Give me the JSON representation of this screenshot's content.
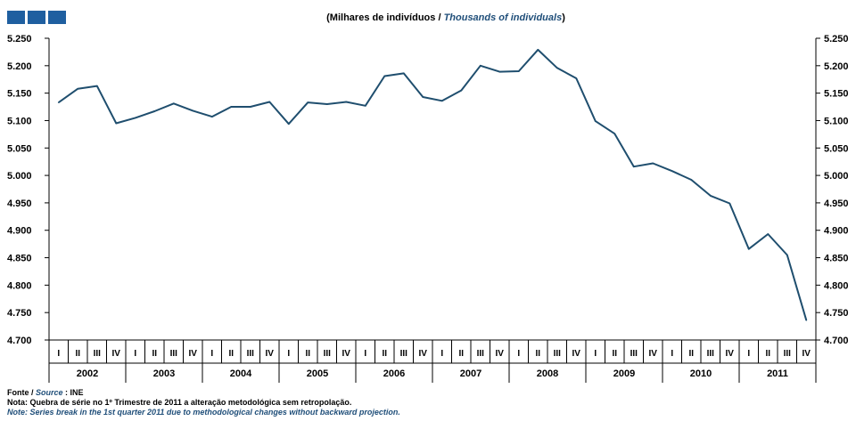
{
  "header": {
    "title_pt": "(Milhares  de indivíduos  /",
    "title_en": "Thousands  of individuals",
    "title_close": ")"
  },
  "notes": {
    "source_pt": "Fonte /",
    "source_en": "Source",
    "source_value": ": INE",
    "note_pt": "Nota: Quebra de série no 1º Trimestre de 2011 a alteração metodológica sem retropolação.",
    "note_en": "Note: Series break in the 1st quarter 2011 due to methodological changes without backward projection."
  },
  "colors": {
    "line": "#1f4e6e",
    "logo": "#1f5fa0",
    "english_text": "#1f4e79"
  },
  "chart_data": {
    "type": "line",
    "title": "(Milhares  de indivíduos  / Thousands  of individuals)",
    "xlabel": "",
    "ylabel": "",
    "ylim": [
      4700,
      5250
    ],
    "yticks": [
      "5.250",
      "5.200",
      "5.150",
      "5.100",
      "5.050",
      "5.000",
      "4.950",
      "4.900",
      "4.850",
      "4.800",
      "4.750",
      "4.700"
    ],
    "quarter_labels": [
      "I",
      "II",
      "III",
      "IV",
      "I",
      "II",
      "III",
      "IV",
      "I",
      "II",
      "III",
      "IV",
      "I",
      "II",
      "III",
      "IV",
      "I",
      "II",
      "III",
      "IV",
      "I",
      "II",
      "III",
      "IV",
      "I",
      "II",
      "III",
      "IV",
      "I",
      "II",
      "III",
      "IV",
      "I",
      "II",
      "III",
      "IV",
      "I",
      "II",
      "III",
      "IV"
    ],
    "years": [
      "2002",
      "2003",
      "2004",
      "2005",
      "2006",
      "2007",
      "2008",
      "2009",
      "2010",
      "2011"
    ],
    "grid": false,
    "legend": "none",
    "series": [
      {
        "values": [
          5133,
          5158,
          5163,
          5095,
          5105,
          5117,
          5131,
          5118,
          5107,
          5125,
          5125,
          5134,
          5094,
          5133,
          5130,
          5134,
          5127,
          5181,
          5186,
          5143,
          5136,
          5155,
          5200,
          5189,
          5190,
          5229,
          5196,
          5177,
          5099,
          5076,
          5016,
          5022,
          5008,
          4992,
          4963,
          4949,
          4866,
          4893,
          4855,
          4736
        ]
      }
    ]
  }
}
